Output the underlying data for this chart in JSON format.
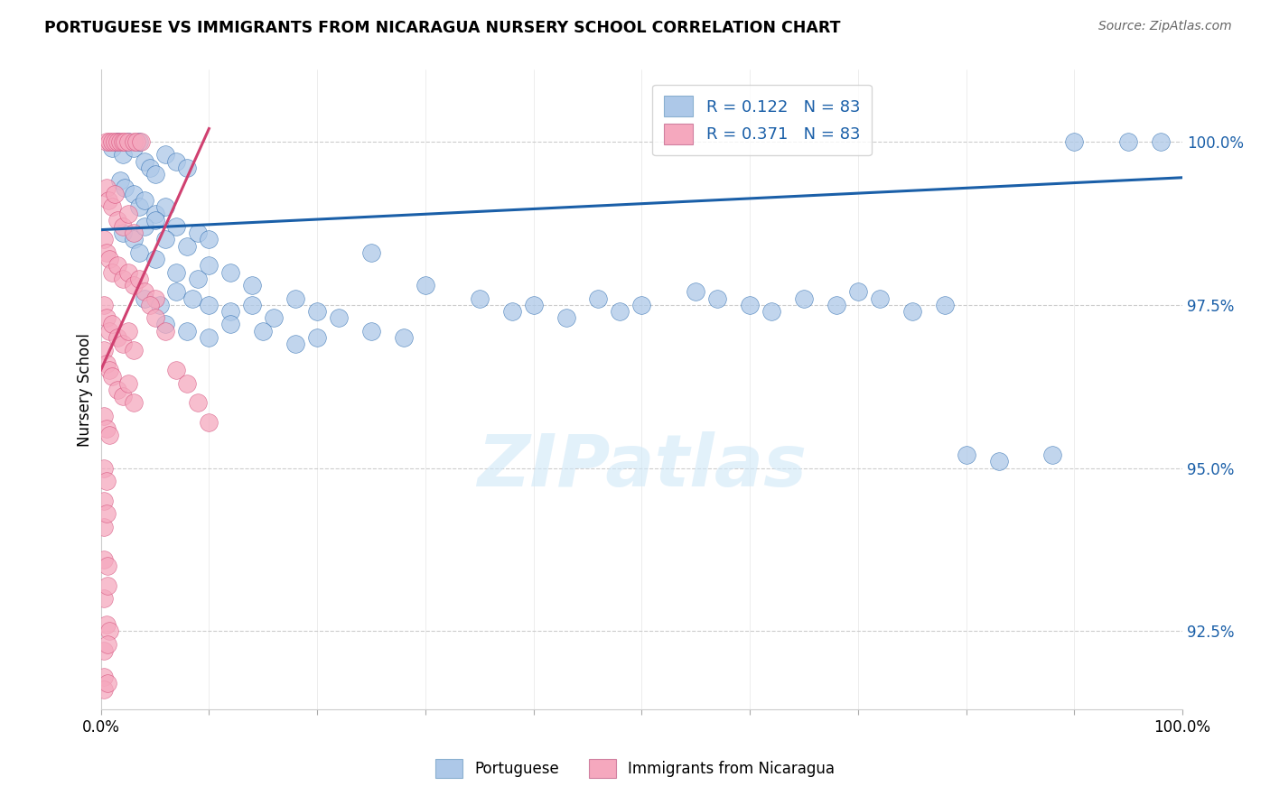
{
  "title": "PORTUGUESE VS IMMIGRANTS FROM NICARAGUA NURSERY SCHOOL CORRELATION CHART",
  "source": "Source: ZipAtlas.com",
  "ylabel": "Nursery School",
  "y_ticks": [
    92.5,
    95.0,
    97.5,
    100.0
  ],
  "y_tick_labels": [
    "92.5%",
    "95.0%",
    "97.5%",
    "100.0%"
  ],
  "xlim": [
    0.0,
    100.0
  ],
  "ylim": [
    91.3,
    101.1
  ],
  "blue_R": 0.122,
  "pink_R": 0.371,
  "N": 83,
  "blue_color": "#adc8e8",
  "blue_line_color": "#1a5fa8",
  "pink_color": "#f5a8be",
  "pink_line_color": "#d04070",
  "watermark": "ZIPatlas",
  "blue_scatter": [
    [
      1.0,
      99.9
    ],
    [
      1.5,
      100.0
    ],
    [
      2.0,
      99.8
    ],
    [
      2.5,
      100.0
    ],
    [
      3.0,
      99.9
    ],
    [
      3.5,
      100.0
    ],
    [
      4.0,
      99.7
    ],
    [
      4.5,
      99.6
    ],
    [
      5.0,
      99.5
    ],
    [
      6.0,
      99.8
    ],
    [
      7.0,
      99.7
    ],
    [
      8.0,
      99.6
    ],
    [
      1.8,
      99.4
    ],
    [
      2.2,
      99.3
    ],
    [
      3.0,
      99.2
    ],
    [
      3.5,
      99.0
    ],
    [
      4.0,
      99.1
    ],
    [
      5.0,
      98.9
    ],
    [
      6.0,
      99.0
    ],
    [
      7.0,
      98.7
    ],
    [
      2.0,
      98.6
    ],
    [
      3.0,
      98.5
    ],
    [
      4.0,
      98.7
    ],
    [
      5.0,
      98.8
    ],
    [
      6.0,
      98.5
    ],
    [
      8.0,
      98.4
    ],
    [
      9.0,
      98.6
    ],
    [
      10.0,
      98.5
    ],
    [
      3.5,
      98.3
    ],
    [
      5.0,
      98.2
    ],
    [
      7.0,
      98.0
    ],
    [
      9.0,
      97.9
    ],
    [
      10.0,
      98.1
    ],
    [
      12.0,
      98.0
    ],
    [
      14.0,
      97.8
    ],
    [
      4.0,
      97.6
    ],
    [
      5.5,
      97.5
    ],
    [
      7.0,
      97.7
    ],
    [
      8.5,
      97.6
    ],
    [
      10.0,
      97.5
    ],
    [
      12.0,
      97.4
    ],
    [
      14.0,
      97.5
    ],
    [
      16.0,
      97.3
    ],
    [
      18.0,
      97.6
    ],
    [
      20.0,
      97.4
    ],
    [
      22.0,
      97.3
    ],
    [
      6.0,
      97.2
    ],
    [
      8.0,
      97.1
    ],
    [
      10.0,
      97.0
    ],
    [
      12.0,
      97.2
    ],
    [
      15.0,
      97.1
    ],
    [
      18.0,
      96.9
    ],
    [
      20.0,
      97.0
    ],
    [
      25.0,
      98.3
    ],
    [
      30.0,
      97.8
    ],
    [
      35.0,
      97.6
    ],
    [
      38.0,
      97.4
    ],
    [
      40.0,
      97.5
    ],
    [
      43.0,
      97.3
    ],
    [
      46.0,
      97.6
    ],
    [
      48.0,
      97.4
    ],
    [
      50.0,
      97.5
    ],
    [
      55.0,
      97.7
    ],
    [
      57.0,
      97.6
    ],
    [
      60.0,
      97.5
    ],
    [
      62.0,
      97.4
    ],
    [
      65.0,
      97.6
    ],
    [
      68.0,
      97.5
    ],
    [
      70.0,
      97.7
    ],
    [
      72.0,
      97.6
    ],
    [
      75.0,
      97.4
    ],
    [
      78.0,
      97.5
    ],
    [
      80.0,
      95.2
    ],
    [
      83.0,
      95.1
    ],
    [
      88.0,
      95.2
    ],
    [
      90.0,
      100.0
    ],
    [
      95.0,
      100.0
    ],
    [
      98.0,
      100.0
    ],
    [
      25.0,
      97.1
    ],
    [
      28.0,
      97.0
    ]
  ],
  "pink_scatter": [
    [
      0.5,
      100.0
    ],
    [
      0.8,
      100.0
    ],
    [
      1.0,
      100.0
    ],
    [
      1.3,
      100.0
    ],
    [
      1.5,
      100.0
    ],
    [
      1.8,
      100.0
    ],
    [
      2.0,
      100.0
    ],
    [
      2.2,
      100.0
    ],
    [
      2.5,
      100.0
    ],
    [
      3.0,
      100.0
    ],
    [
      3.3,
      100.0
    ],
    [
      3.7,
      100.0
    ],
    [
      0.5,
      99.3
    ],
    [
      0.7,
      99.1
    ],
    [
      1.0,
      99.0
    ],
    [
      1.3,
      99.2
    ],
    [
      1.5,
      98.8
    ],
    [
      2.0,
      98.7
    ],
    [
      2.5,
      98.9
    ],
    [
      3.0,
      98.6
    ],
    [
      0.3,
      98.5
    ],
    [
      0.5,
      98.3
    ],
    [
      0.8,
      98.2
    ],
    [
      1.0,
      98.0
    ],
    [
      1.5,
      98.1
    ],
    [
      2.0,
      97.9
    ],
    [
      2.5,
      98.0
    ],
    [
      3.0,
      97.8
    ],
    [
      3.5,
      97.9
    ],
    [
      4.0,
      97.7
    ],
    [
      5.0,
      97.6
    ],
    [
      0.3,
      97.5
    ],
    [
      0.5,
      97.3
    ],
    [
      0.8,
      97.1
    ],
    [
      1.0,
      97.2
    ],
    [
      1.5,
      97.0
    ],
    [
      2.0,
      96.9
    ],
    [
      2.5,
      97.1
    ],
    [
      3.0,
      96.8
    ],
    [
      0.3,
      96.8
    ],
    [
      0.5,
      96.6
    ],
    [
      0.8,
      96.5
    ],
    [
      1.0,
      96.4
    ],
    [
      1.5,
      96.2
    ],
    [
      2.0,
      96.1
    ],
    [
      2.5,
      96.3
    ],
    [
      3.0,
      96.0
    ],
    [
      0.3,
      95.8
    ],
    [
      0.5,
      95.6
    ],
    [
      0.8,
      95.5
    ],
    [
      0.3,
      95.0
    ],
    [
      0.5,
      94.8
    ],
    [
      0.3,
      94.5
    ],
    [
      0.3,
      94.1
    ],
    [
      0.5,
      94.3
    ],
    [
      0.3,
      93.6
    ],
    [
      0.6,
      93.5
    ],
    [
      0.3,
      93.0
    ],
    [
      0.6,
      93.2
    ],
    [
      0.5,
      92.6
    ],
    [
      0.8,
      92.5
    ],
    [
      0.3,
      92.2
    ],
    [
      0.6,
      92.3
    ],
    [
      0.3,
      91.8
    ],
    [
      0.3,
      91.6
    ],
    [
      0.6,
      91.7
    ],
    [
      4.5,
      97.5
    ],
    [
      5.0,
      97.3
    ],
    [
      6.0,
      97.1
    ],
    [
      7.0,
      96.5
    ],
    [
      8.0,
      96.3
    ],
    [
      9.0,
      96.0
    ],
    [
      10.0,
      95.7
    ]
  ],
  "blue_line": [
    [
      0,
      98.65
    ],
    [
      100,
      99.45
    ]
  ],
  "pink_line": [
    [
      0,
      96.5
    ],
    [
      10,
      100.2
    ]
  ]
}
